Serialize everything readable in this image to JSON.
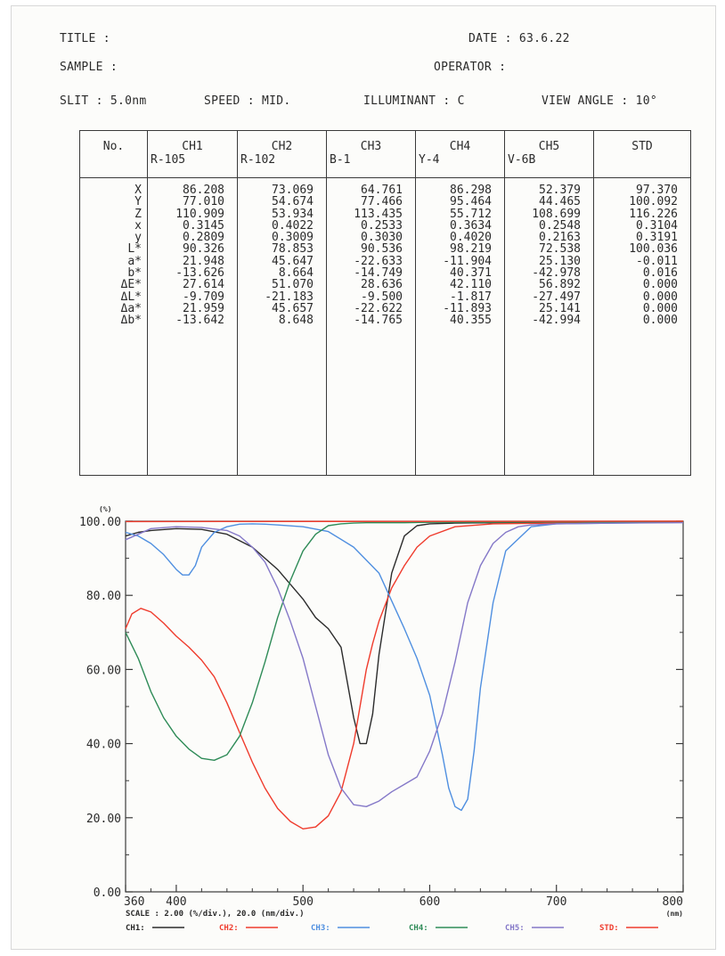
{
  "header": {
    "title_label": "TITLE :",
    "date": "DATE : 63.6.22",
    "sample_label": "SAMPLE :",
    "operator_label": "OPERATOR :",
    "slit": "SLIT : 5.0nm",
    "speed": "SPEED : MID.",
    "illuminant": "ILLUMINANT : C",
    "view_angle": "VIEW ANGLE : 10°"
  },
  "table": {
    "no_header": "No.",
    "row_labels": [
      "X",
      "Y",
      "Z",
      "x",
      "y",
      "L*",
      "a*",
      "b*",
      "ΔE*",
      "ΔL*",
      "Δa*",
      "Δb*"
    ],
    "columns": [
      {
        "name": "CH1",
        "sample": "R-105",
        "values": [
          "86.208",
          "77.010",
          "110.909",
          "0.3145",
          "0.2809",
          "90.326",
          "21.948",
          "-13.626",
          "27.614",
          "-9.709",
          "21.959",
          "-13.642"
        ]
      },
      {
        "name": "CH2",
        "sample": "R-102",
        "values": [
          "73.069",
          "54.674",
          "53.934",
          "0.4022",
          "0.3009",
          "78.853",
          "45.647",
          "8.664",
          "51.070",
          "-21.183",
          "45.657",
          "8.648"
        ]
      },
      {
        "name": "CH3",
        "sample": "B-1",
        "values": [
          "64.761",
          "77.466",
          "113.435",
          "0.2533",
          "0.3030",
          "90.536",
          "-22.633",
          "-14.749",
          "28.636",
          "-9.500",
          "-22.622",
          "-14.765"
        ]
      },
      {
        "name": "CH4",
        "sample": "Y-4",
        "values": [
          "86.298",
          "95.464",
          "55.712",
          "0.3634",
          "0.4020",
          "98.219",
          "-11.904",
          "40.371",
          "42.110",
          "-1.817",
          "-11.893",
          "40.355"
        ]
      },
      {
        "name": "CH5",
        "sample": "V-6B",
        "values": [
          "52.379",
          "44.465",
          "108.699",
          "0.2548",
          "0.2163",
          "72.538",
          "25.130",
          "-42.978",
          "56.892",
          "-27.497",
          "25.141",
          "-42.994"
        ]
      },
      {
        "name": "STD",
        "sample": "",
        "values": [
          "97.370",
          "100.092",
          "116.226",
          "0.3104",
          "0.3191",
          "100.036",
          "-0.011",
          "0.016",
          "0.000",
          "0.000",
          "0.000",
          "0.000"
        ]
      }
    ]
  },
  "chart_data": {
    "type": "line",
    "ylabel": "(%)",
    "xlabel": "(nm)",
    "xlim": [
      360,
      800
    ],
    "ylim": [
      0,
      100
    ],
    "x_first_tick_label": "360",
    "x_ticks": [
      "400",
      "500",
      "600",
      "700",
      "800"
    ],
    "y_ticks": [
      "0.00",
      "20.00",
      "40.00",
      "60.00",
      "80.00",
      "100.00"
    ],
    "scale_text": "SCALE : 2.00 (%/div.), 20.0 (nm/div.)",
    "grid": false,
    "series": [
      {
        "name": "CH1",
        "color": "#2b2b2b",
        "x": [
          360,
          370,
          380,
          400,
          420,
          440,
          460,
          480,
          500,
          510,
          520,
          530,
          540,
          545,
          550,
          555,
          560,
          570,
          580,
          590,
          600,
          620,
          650,
          700,
          750,
          800
        ],
        "values": [
          96,
          97,
          97.5,
          98,
          97.8,
          96.5,
          93,
          87,
          79,
          74,
          71,
          66,
          47,
          40,
          40,
          48,
          64,
          86,
          96,
          98.8,
          99.3,
          99.5,
          99.6,
          99.7,
          99.7,
          99.8
        ]
      },
      {
        "name": "CH2",
        "color": "#ef3b2c",
        "x": [
          360,
          365,
          372,
          380,
          390,
          400,
          410,
          420,
          430,
          440,
          450,
          460,
          470,
          480,
          490,
          500,
          510,
          520,
          530,
          540,
          545,
          550,
          555,
          560,
          570,
          580,
          590,
          600,
          620,
          650,
          700,
          800
        ],
        "values": [
          71,
          75,
          76.5,
          75.5,
          72.5,
          69,
          66,
          62.5,
          58,
          51,
          43,
          35,
          28,
          22.5,
          19,
          17,
          17.5,
          20.5,
          27,
          40,
          50,
          60,
          67,
          73,
          82,
          88,
          93,
          96,
          98.5,
          99.3,
          99.5,
          99.7
        ]
      },
      {
        "name": "CH3",
        "color": "#4f8fe0",
        "x": [
          360,
          370,
          380,
          390,
          400,
          405,
          410,
          415,
          420,
          430,
          440,
          450,
          460,
          470,
          480,
          500,
          520,
          540,
          560,
          580,
          590,
          600,
          610,
          615,
          620,
          625,
          630,
          635,
          640,
          650,
          660,
          680,
          700,
          750,
          800
        ],
        "values": [
          97,
          96,
          94,
          91,
          87,
          85.5,
          85.5,
          88,
          93,
          97,
          98.5,
          99.2,
          99.3,
          99.2,
          99,
          98.5,
          97.2,
          93,
          86,
          71,
          63,
          53,
          37,
          28,
          23,
          22,
          25,
          38,
          55,
          78,
          92,
          98.5,
          99.3,
          99.5,
          99.7
        ]
      },
      {
        "name": "CH4",
        "color": "#2e8b57",
        "x": [
          360,
          370,
          380,
          390,
          400,
          410,
          420,
          430,
          440,
          450,
          460,
          470,
          480,
          490,
          500,
          510,
          520,
          530,
          540,
          550,
          560,
          580,
          600,
          650,
          700,
          800
        ],
        "values": [
          70,
          63,
          54,
          47,
          42,
          38.5,
          36,
          35.5,
          37,
          42,
          51,
          62,
          74,
          84,
          92,
          96.5,
          98.8,
          99.3,
          99.5,
          99.6,
          99.6,
          99.6,
          99.7,
          99.7,
          99.8,
          99.8
        ]
      },
      {
        "name": "CH5",
        "color": "#8478c8",
        "x": [
          360,
          380,
          400,
          420,
          440,
          450,
          460,
          470,
          480,
          490,
          500,
          510,
          520,
          530,
          540,
          550,
          560,
          570,
          580,
          590,
          600,
          610,
          620,
          630,
          640,
          650,
          660,
          670,
          680,
          700,
          750,
          800
        ],
        "values": [
          95,
          98,
          98.5,
          98.3,
          97.5,
          96,
          93,
          89,
          82,
          73,
          63,
          50,
          37,
          28,
          23.5,
          23,
          24.5,
          27,
          29,
          31,
          38,
          48,
          62,
          78,
          88,
          94,
          97,
          98.5,
          99,
          99.3,
          99.5,
          99.6
        ]
      },
      {
        "name": "STD",
        "color": "#ef3b2c",
        "x": [
          360,
          800
        ],
        "values": [
          99.9,
          100
        ]
      }
    ]
  }
}
